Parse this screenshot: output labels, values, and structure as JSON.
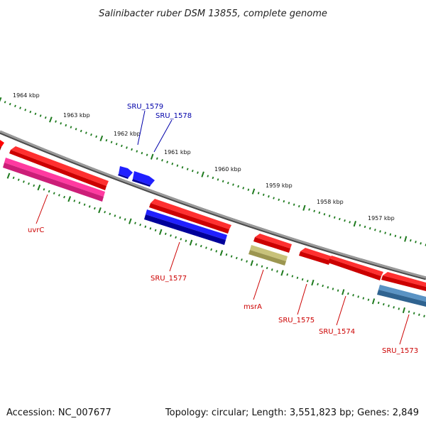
{
  "title": "Salinibacter ruber DSM 13855, complete genome",
  "footer": {
    "accession": "Accession: NC_007677",
    "summary": "Topology: circular; Length: 3,551,823 bp; Genes: 2,849"
  },
  "scale_labels": [
    "1964 kbp",
    "1963 kbp",
    "1962 kbp",
    "1961 kbp",
    "1960 kbp",
    "1959 kbp",
    "1958 kbp",
    "1957 kbp"
  ],
  "colors": {
    "backbone": "#8a8a8a",
    "tick": "#1e7a1e",
    "red_gene": "#ff0000",
    "blue_gene": "#0000ff",
    "pink_gene": "#ff2a96",
    "khaki_gene": "#bdb76b",
    "steel_gene": "#4682b4",
    "blue_label": "#0000aa",
    "red_label": "#cc0000"
  },
  "gene_labels": [
    "SRU_1579",
    "SRU_1578",
    "uvrC",
    "SRU_1577",
    "msrA",
    "SRU_1575",
    "SRU_1574",
    "SRU_1573"
  ]
}
